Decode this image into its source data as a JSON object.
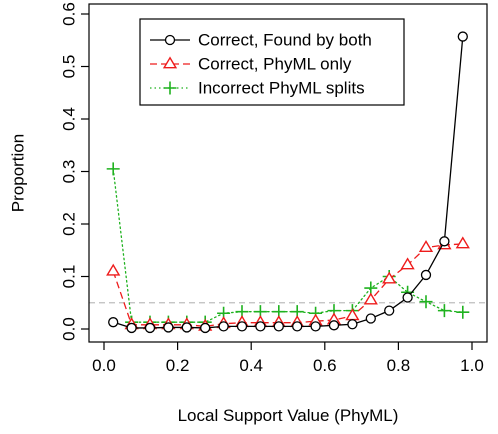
{
  "chart_data": {
    "type": "line",
    "xlabel": "Local Support Value (PhyML)",
    "ylabel": "Proportion",
    "xlim": [
      0.0,
      1.0
    ],
    "ylim": [
      0.0,
      0.6
    ],
    "xticks": [
      0.0,
      0.2,
      0.4,
      0.6,
      0.8,
      1.0
    ],
    "xtick_labels": [
      "0.0",
      "0.2",
      "0.4",
      "0.6",
      "0.8",
      "1.0"
    ],
    "yticks": [
      0.0,
      0.1,
      0.2,
      0.3,
      0.4,
      0.5,
      0.6
    ],
    "ytick_labels": [
      "0.0",
      "0.1",
      "0.2",
      "0.3",
      "0.4",
      "0.5",
      "0.6"
    ],
    "grid": false,
    "legend_position": "top-right",
    "reference_line": {
      "y": 0.05,
      "color": "#bebebe",
      "style": "dashed"
    },
    "x": [
      0.025,
      0.075,
      0.125,
      0.175,
      0.225,
      0.275,
      0.325,
      0.375,
      0.425,
      0.475,
      0.525,
      0.575,
      0.625,
      0.675,
      0.725,
      0.775,
      0.825,
      0.875,
      0.925,
      0.975
    ],
    "series": [
      {
        "name": "Correct, Found by both",
        "color": "#000000",
        "marker": "circle",
        "line": "solid",
        "values": [
          0.013,
          0.002,
          0.002,
          0.003,
          0.003,
          0.002,
          0.005,
          0.005,
          0.005,
          0.005,
          0.005,
          0.005,
          0.007,
          0.009,
          0.02,
          0.035,
          0.06,
          0.103,
          0.167,
          0.557
        ]
      },
      {
        "name": "Correct, PhyML only",
        "color": "#ee1c1c",
        "marker": "triangle",
        "line": "dashed",
        "values": [
          0.11,
          0.008,
          0.008,
          0.008,
          0.008,
          0.005,
          0.01,
          0.012,
          0.012,
          0.012,
          0.012,
          0.015,
          0.017,
          0.025,
          0.055,
          0.095,
          0.122,
          0.155,
          0.16,
          0.162
        ]
      },
      {
        "name": "Incorrect PhyML splits",
        "color": "#1fb21f",
        "marker": "plus",
        "line": "dotted",
        "values": [
          0.305,
          0.013,
          0.013,
          0.013,
          0.013,
          0.013,
          0.03,
          0.033,
          0.033,
          0.033,
          0.033,
          0.03,
          0.035,
          0.035,
          0.078,
          0.1,
          0.07,
          0.052,
          0.035,
          0.032
        ]
      }
    ]
  }
}
